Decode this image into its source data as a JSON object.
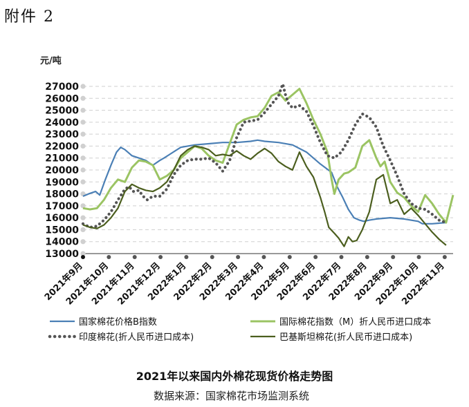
{
  "header": {
    "attachment_label": "附件 2"
  },
  "caption": {
    "title": "2021年以来国内外棉花现货价格走势图",
    "source": "数据来源：国家棉花市场监测系统"
  },
  "chart_data": {
    "type": "line",
    "ylabel": "元/吨",
    "ylim": [
      13000,
      27000
    ],
    "yticks": [
      13000,
      14000,
      15000,
      16000,
      17000,
      18000,
      19000,
      20000,
      21000,
      22000,
      23000,
      24000,
      25000,
      26000,
      27000
    ],
    "xlim": [
      0,
      26.5
    ],
    "x_tick_labels": [
      "2021年9月",
      "2021年10月",
      "2021年11月",
      "2021年12月",
      "2022年1月",
      "2022年2月",
      "2022年3月",
      "2022年4月",
      "2022年5月",
      "2022年6月",
      "2022年7月",
      "2022年8月",
      "2022年9月",
      "2022年10月",
      "2022年11月"
    ],
    "grid": true,
    "legend": "bottom",
    "series": [
      {
        "name": "国家棉花价格B指数",
        "color": "#4a7fb5",
        "style": "solid",
        "x": [
          0,
          0.4,
          0.9,
          1.2,
          1.6,
          2.0,
          2.4,
          2.7,
          3.0,
          3.5,
          4.0,
          4.5,
          5.0,
          5.5,
          5.8,
          6.2,
          7.0,
          8.0,
          9.0,
          10.0,
          11.0,
          12.0,
          12.5,
          13.0,
          14.0,
          15.0,
          16.0,
          17.0,
          17.8,
          18.2,
          18.6,
          19.0,
          19.4,
          19.8,
          20.1,
          20.5,
          21.0,
          22.0,
          23.0,
          24.0,
          24.3,
          25.0,
          26.0
        ],
        "y": [
          17800,
          18000,
          18200,
          17900,
          19200,
          20400,
          21500,
          21900,
          21700,
          21200,
          21000,
          20800,
          20400,
          20800,
          21000,
          21300,
          21900,
          22100,
          22200,
          22300,
          22300,
          22400,
          22500,
          22400,
          22300,
          22100,
          21500,
          20500,
          19800,
          18600,
          17700,
          16700,
          16000,
          15800,
          15700,
          15800,
          15900,
          16000,
          15900,
          15700,
          15500,
          15500,
          15600
        ]
      },
      {
        "name": "国际棉花指数（M）折人民币进口成本",
        "color": "#9bc463",
        "style": "solid",
        "x": [
          0,
          0.5,
          1.0,
          1.5,
          2.0,
          2.5,
          3.0,
          3.5,
          4.0,
          4.5,
          5.0,
          5.5,
          6.0,
          6.5,
          7.0,
          7.5,
          8.0,
          8.5,
          9.0,
          9.5,
          10.0,
          10.5,
          11.0,
          11.5,
          12.0,
          12.5,
          13.0,
          13.5,
          14.0,
          14.5,
          15.0,
          15.5,
          16.0,
          16.5,
          17.0,
          17.5,
          17.8,
          18.0,
          18.3,
          18.7,
          19.0,
          19.5,
          20.0,
          20.5,
          21.0,
          21.3,
          21.6,
          22.0,
          22.5,
          23.0,
          23.5,
          24.0,
          24.5,
          25.0,
          25.5,
          26.0,
          26.5
        ],
        "y": [
          16800,
          16700,
          16800,
          17500,
          18500,
          19200,
          19000,
          20200,
          20800,
          20700,
          20400,
          19200,
          19500,
          20000,
          21000,
          21500,
          22000,
          21800,
          21200,
          20800,
          20600,
          22200,
          23800,
          24200,
          24400,
          24500,
          25200,
          26200,
          26500,
          25800,
          26300,
          26800,
          25600,
          24200,
          23000,
          21500,
          19200,
          18000,
          19200,
          19700,
          19800,
          20200,
          22000,
          22500,
          21000,
          20300,
          20700,
          19000,
          18100,
          17700,
          17000,
          16500,
          17900,
          17200,
          16300,
          15600,
          17900
        ]
      },
      {
        "name": "印度棉花(折人民币进口成本)",
        "color": "#555555",
        "style": "dotted",
        "x": [
          0,
          0.5,
          1.0,
          1.5,
          2.0,
          2.5,
          3.0,
          3.3,
          3.6,
          4.0,
          4.3,
          4.6,
          5.0,
          5.5,
          6.0,
          6.5,
          7.0,
          7.5,
          8.0,
          8.5,
          9.0,
          9.5,
          10.0,
          10.5,
          11.0,
          11.5,
          12.0,
          12.5,
          13.0,
          13.5,
          14.0,
          14.3,
          14.5,
          14.7,
          15.0,
          15.5,
          16.0,
          16.5,
          17.0,
          17.5,
          18.0,
          18.5,
          19.0,
          19.5,
          20.0,
          20.5,
          21.0,
          21.5,
          22.0,
          22.5,
          23.0,
          23.5,
          24.0,
          24.5,
          25.0,
          25.5,
          26.0
        ],
        "y": [
          15500,
          15200,
          15300,
          15800,
          16500,
          17500,
          18400,
          18600,
          18200,
          18300,
          17800,
          17500,
          17800,
          17800,
          18400,
          19600,
          20400,
          20800,
          20900,
          20900,
          21000,
          20600,
          19900,
          20800,
          22700,
          24000,
          24100,
          24200,
          24800,
          25500,
          26200,
          27200,
          26300,
          25600,
          25200,
          25400,
          24900,
          23700,
          22300,
          21200,
          21000,
          21500,
          22500,
          23800,
          24700,
          24400,
          23600,
          22000,
          20800,
          19500,
          18000,
          17200,
          16800,
          16700,
          16300,
          15800,
          15600
        ]
      },
      {
        "name": "巴基斯坦棉花(折人民币进口成本)",
        "color": "#4b5e1e",
        "style": "solid",
        "x": [
          0,
          0.5,
          1.0,
          1.5,
          2.0,
          2.5,
          3.0,
          3.5,
          4.0,
          4.5,
          5.0,
          5.5,
          6.0,
          6.5,
          7.0,
          7.5,
          8.0,
          8.5,
          9.0,
          9.5,
          10.0,
          10.5,
          11.0,
          11.5,
          12.0,
          12.5,
          13.0,
          13.5,
          14.0,
          14.5,
          15.0,
          15.5,
          16.0,
          16.5,
          17.0,
          17.3,
          17.6,
          18.0,
          18.3,
          18.7,
          19.0,
          19.3,
          19.6,
          20.0,
          20.5,
          21.0,
          21.5,
          22.0,
          22.5,
          23.0,
          23.5,
          24.0,
          24.5,
          25.0,
          25.5,
          26.0
        ],
        "y": [
          15400,
          15200,
          15100,
          15400,
          16000,
          16800,
          18200,
          18800,
          18500,
          18300,
          18200,
          18500,
          19000,
          20000,
          21200,
          21700,
          22000,
          21900,
          21700,
          21200,
          21300,
          21200,
          21600,
          21200,
          20900,
          21400,
          21800,
          21400,
          20700,
          20300,
          20000,
          21500,
          20300,
          19400,
          17700,
          16500,
          15200,
          14700,
          14300,
          13600,
          14400,
          14000,
          14100,
          15000,
          16500,
          19200,
          19600,
          17200,
          17500,
          16300,
          16800,
          16200,
          15500,
          14800,
          14200,
          13700
        ]
      }
    ]
  }
}
